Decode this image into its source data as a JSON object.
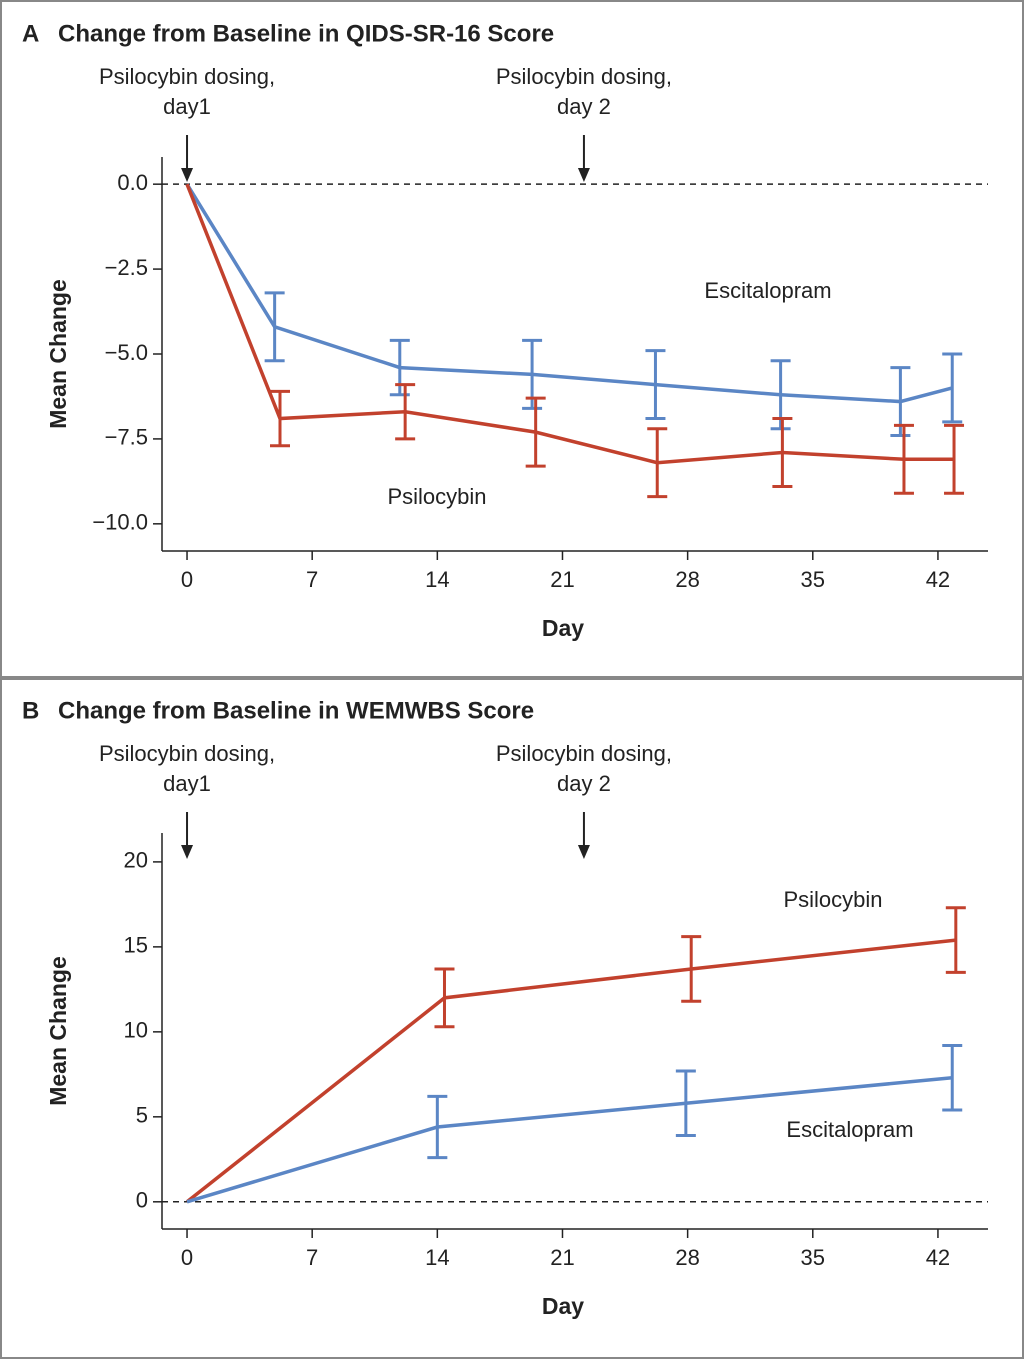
{
  "chart_data": [
    {
      "type": "line",
      "panel": "A",
      "title": "Change from Baseline in QIDS-SR-16 Score",
      "xlabel": "Day",
      "ylabel": "Mean Change",
      "xlim": [
        -1.4,
        44.8
      ],
      "xticks": [
        0,
        7,
        14,
        21,
        28,
        35,
        42
      ],
      "ylim": [
        -10.8,
        0.8
      ],
      "yticks": [
        {
          "value": 0,
          "label": "0.0"
        },
        {
          "value": -2.5,
          "label": "−2.5"
        },
        {
          "value": -5,
          "label": "−5.0"
        },
        {
          "value": -7.5,
          "label": "−7.5"
        },
        {
          "value": -10,
          "label": "−10.0"
        }
      ],
      "reference_line": 0,
      "annotations": [
        {
          "text": [
            "Psilocybin dosing,",
            "day1"
          ],
          "x": 0
        },
        {
          "text": [
            "Psilocybin dosing,",
            "day 2"
          ],
          "x": 22.2
        }
      ],
      "series": [
        {
          "name": "Escitalopram",
          "color": "#5b86c5",
          "x": [
            0,
            4.9,
            11.9,
            19.3,
            26.2,
            33.2,
            39.9,
            42.8
          ],
          "values": [
            0,
            -4.2,
            -5.4,
            -5.6,
            -5.9,
            -6.2,
            -6.4,
            -6.0
          ],
          "errors": [
            null,
            1.0,
            0.8,
            1.0,
            1.0,
            1.0,
            1.0,
            1.0
          ]
        },
        {
          "name": "Psilocybin",
          "color": "#c2412d",
          "x": [
            0,
            5.2,
            12.2,
            19.5,
            26.3,
            33.3,
            40.1,
            42.9
          ],
          "values": [
            0,
            -6.9,
            -6.7,
            -7.3,
            -8.2,
            -7.9,
            -8.1,
            -8.1
          ],
          "errors": [
            null,
            0.8,
            0.8,
            1.0,
            1.0,
            1.0,
            1.0,
            1.0
          ]
        }
      ]
    },
    {
      "type": "line",
      "panel": "B",
      "title": "Change from Baseline in WEMWBS Score",
      "xlabel": "Day",
      "ylabel": "Mean Change",
      "xlim": [
        -1.4,
        44.8
      ],
      "xticks": [
        0,
        7,
        14,
        21,
        28,
        35,
        42
      ],
      "ylim": [
        -1.6,
        21.7
      ],
      "yticks": [
        0,
        5,
        10,
        15,
        20
      ],
      "reference_line": 0,
      "annotations": [
        {
          "text": [
            "Psilocybin dosing,",
            "day1"
          ],
          "x": 0
        },
        {
          "text": [
            "Psilocybin dosing,",
            "day 2"
          ],
          "x": 22.2
        }
      ],
      "series": [
        {
          "name": "Psilocybin",
          "color": "#c2412d",
          "x": [
            0,
            14.4,
            28.2,
            43
          ],
          "values": [
            0,
            12.0,
            13.7,
            15.4
          ],
          "errors": [
            null,
            1.7,
            1.9,
            1.9
          ]
        },
        {
          "name": "Escitalopram",
          "color": "#5b86c5",
          "x": [
            0,
            14,
            27.9,
            42.8
          ],
          "values": [
            0,
            4.4,
            5.8,
            7.3
          ],
          "errors": [
            null,
            1.8,
            1.9,
            1.9
          ]
        }
      ]
    }
  ]
}
